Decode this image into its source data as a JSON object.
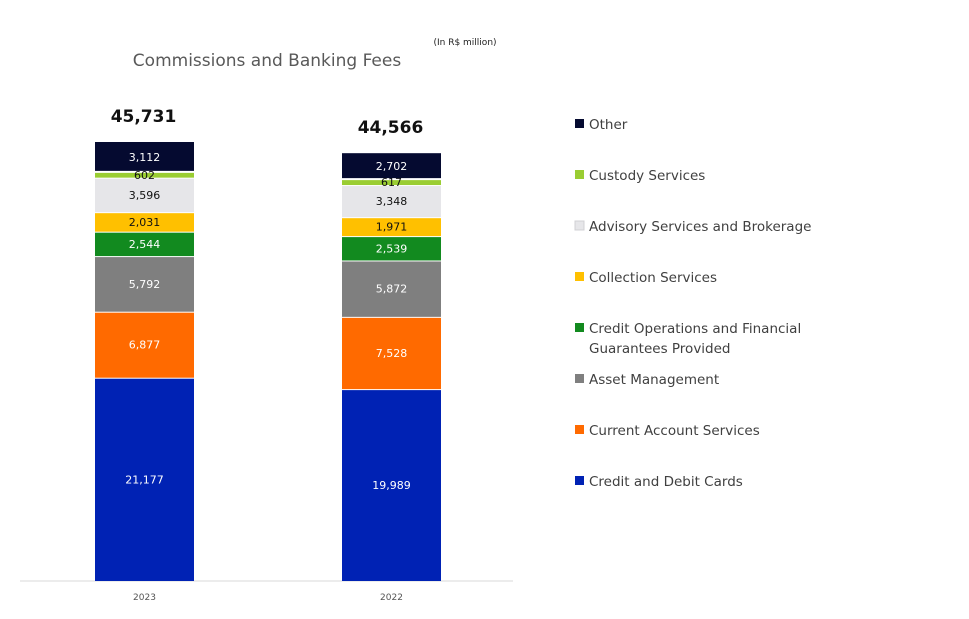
{
  "chart_data": {
    "type": "bar",
    "stacked": true,
    "title": "Commissions and Banking Fees",
    "unit_note": "(In R$ million)",
    "categories": [
      "2023",
      "2022"
    ],
    "totals": [
      "45,731",
      "44,566"
    ],
    "series": [
      {
        "name": "Credit and Debit Cards",
        "color": "#0022b4",
        "label_color": "#ffffff",
        "values": [
          21177,
          19989
        ],
        "labels": [
          "21,177",
          "19,989"
        ]
      },
      {
        "name": "Current Account Services",
        "color": "#ff6a00",
        "label_color": "#ffffff",
        "values": [
          6877,
          7528
        ],
        "labels": [
          "6,877",
          "7,528"
        ]
      },
      {
        "name": "Asset Management",
        "color": "#7f7f7f",
        "label_color": "#ffffff",
        "values": [
          5792,
          5872
        ],
        "labels": [
          "5,792",
          "5,872"
        ]
      },
      {
        "name": "Credit Operations and Financial Guarantees Provided",
        "legend_lines": [
          "Credit Operations and Financial",
          "Guarantees Provided"
        ],
        "color": "#128a1f",
        "label_color": "#ffffff",
        "values": [
          2544,
          2539
        ],
        "labels": [
          "2,544",
          "2,539"
        ]
      },
      {
        "name": "Collection Services",
        "color": "#ffc000",
        "label_color": "#111111",
        "values": [
          2031,
          1971
        ],
        "labels": [
          "2,031",
          "1,971"
        ]
      },
      {
        "name": "Advisory Services and Brokerage",
        "color": "#e6e6e9",
        "label_color": "#111111",
        "values": [
          3596,
          3348
        ],
        "labels": [
          "3,596",
          "3,348"
        ]
      },
      {
        "name": "Custody Services",
        "color": "#9acd32",
        "label_color": "#111111",
        "values": [
          602,
          617
        ],
        "labels": [
          "602",
          "617"
        ]
      },
      {
        "name": "Other",
        "color": "#050a30",
        "label_color": "#ffffff",
        "values": [
          3112,
          2702
        ],
        "labels": [
          "3,112",
          "2,702"
        ]
      }
    ],
    "legend_order": [
      "Other",
      "Custody Services",
      "Advisory Services and Brokerage",
      "Collection Services",
      "Credit Operations and Financial Guarantees Provided",
      "Asset Management",
      "Current Account Services",
      "Credit and Debit Cards"
    ],
    "legend_position": "right",
    "grid": false
  }
}
